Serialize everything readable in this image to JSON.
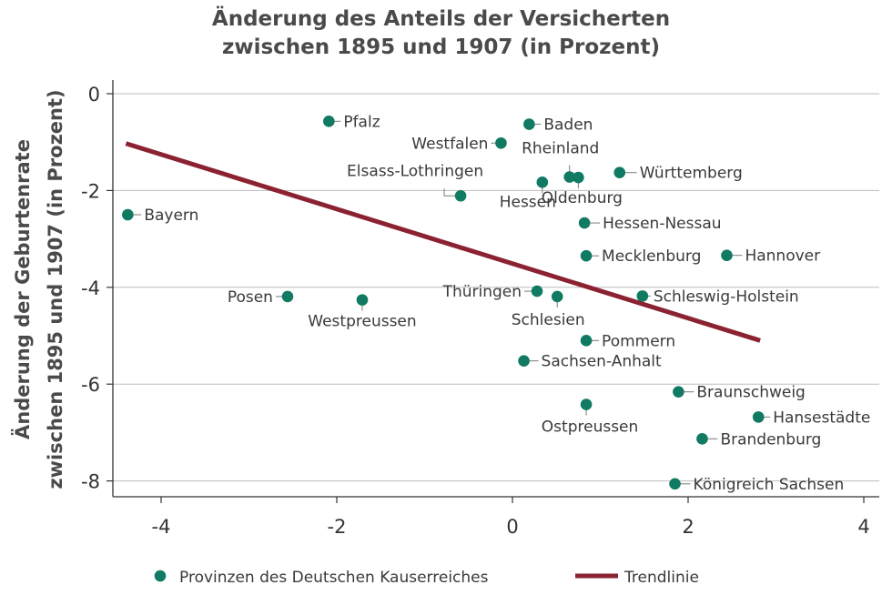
{
  "chart_data": {
    "type": "scatter",
    "title_lines": [
      "Änderung des Anteils der Versicherten",
      "zwischen 1895 und 1907 (in Prozent)"
    ],
    "ylabel_lines": [
      "Änderung der Geburtenrate",
      "zwischen 1895 und 1907 (in Prozent)"
    ],
    "xlim": [
      -4.6,
      4.1
    ],
    "ylim": [
      -8.35,
      0.25
    ],
    "x_ticks": [
      -4,
      -2,
      0,
      2,
      4
    ],
    "y_ticks": [
      0,
      -2,
      -4,
      -6,
      -8
    ],
    "x_tick_labels": [
      "-4",
      "-2",
      "0",
      "2",
      "4"
    ],
    "y_tick_labels": [
      "0",
      "-2",
      "-4",
      "-6",
      "-8"
    ],
    "grid": "horizontal",
    "legend_position": "bottom",
    "colors": {
      "points": "#107a62",
      "trend": "#8b2232",
      "grid": "#bdbdbd",
      "axis": "#333333"
    },
    "series": [
      {
        "name": "Provinzen des Deutschen Kauserreiches",
        "points": [
          {
            "label": "Bayern",
            "x": -4.38,
            "y": -2.5
          },
          {
            "label": "Pfalz",
            "x": -2.09,
            "y": -0.57
          },
          {
            "label": "Westfalen",
            "x": -0.13,
            "y": -1.02
          },
          {
            "label": "Baden",
            "x": 0.19,
            "y": -0.63
          },
          {
            "label": "Rheinland",
            "x": 0.65,
            "y": -1.72
          },
          {
            "label": "Oldenburg",
            "x": 0.75,
            "y": -1.73
          },
          {
            "label": "Württemberg",
            "x": 1.22,
            "y": -1.63
          },
          {
            "label": "Elsass-Lothringen",
            "x": -0.59,
            "y": -2.11
          },
          {
            "label": "Hessen",
            "x": 0.34,
            "y": -1.83
          },
          {
            "label": "Hessen-Nessau",
            "x": 0.82,
            "y": -2.67
          },
          {
            "label": "Mecklenburg",
            "x": 0.84,
            "y": -3.35
          },
          {
            "label": "Hannover",
            "x": 2.44,
            "y": -3.34
          },
          {
            "label": "Posen",
            "x": -2.56,
            "y": -4.19
          },
          {
            "label": "Westpreussen",
            "x": -1.71,
            "y": -4.26
          },
          {
            "label": "Thüringen",
            "x": 0.28,
            "y": -4.08
          },
          {
            "label": "Schlesien",
            "x": 0.51,
            "y": -4.19
          },
          {
            "label": "Schleswig-Holstein",
            "x": 1.48,
            "y": -4.18
          },
          {
            "label": "Pommern",
            "x": 0.84,
            "y": -5.1
          },
          {
            "label": "Sachsen-Anhalt",
            "x": 0.13,
            "y": -5.52
          },
          {
            "label": "Braunschweig",
            "x": 1.89,
            "y": -6.16
          },
          {
            "label": "Ostpreussen",
            "x": 0.84,
            "y": -6.42
          },
          {
            "label": "Hansestädte",
            "x": 2.8,
            "y": -6.68
          },
          {
            "label": "Brandenburg",
            "x": 2.16,
            "y": -7.13
          },
          {
            "label": "Königreich Sachsen",
            "x": 1.85,
            "y": -8.06
          }
        ]
      },
      {
        "name": "Trendlinie",
        "type": "line",
        "x": [
          -4.4,
          2.82
        ],
        "y": [
          -1.03,
          -5.1
        ]
      }
    ]
  }
}
